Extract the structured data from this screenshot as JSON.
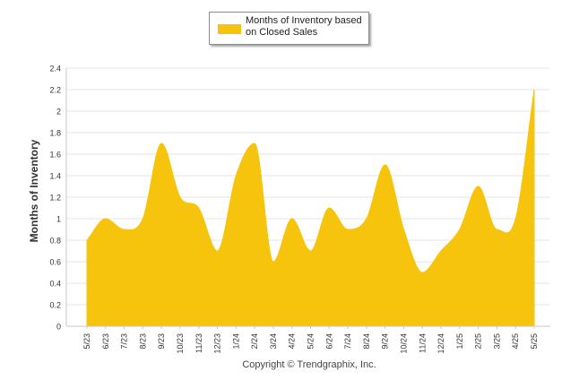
{
  "legend": {
    "label": "Months of Inventory based on Closed Sales"
  },
  "footer": {
    "copyright": "Copyright © Trendgraphix, Inc."
  },
  "colors": {
    "series_fill": "#f6c40c",
    "grid": "#e4e4e4",
    "axis": "#c8c8c8",
    "tick_text": "#333333"
  },
  "chart_data": {
    "type": "area",
    "ylabel": "Months of Inventory",
    "xlabel": "",
    "ylim": [
      0,
      2.4
    ],
    "yticks": [
      "0",
      "0.2",
      "0.4",
      "0.6",
      "0.8",
      "1",
      "1.2",
      "1.4",
      "1.6",
      "1.8",
      "2",
      "2.2",
      "2.4"
    ],
    "grid": true,
    "legend_position": "top-center",
    "categories": [
      "5/23",
      "6/23",
      "7/23",
      "8/23",
      "9/23",
      "10/23",
      "11/23",
      "12/23",
      "1/24",
      "2/24",
      "3/24",
      "4/24",
      "5/24",
      "6/24",
      "7/24",
      "8/24",
      "9/24",
      "10/24",
      "11/24",
      "12/24",
      "1/25",
      "2/25",
      "3/25",
      "4/25",
      "5/25"
    ],
    "series": [
      {
        "name": "Months of Inventory based on Closed Sales",
        "values": [
          0.8,
          1.0,
          0.9,
          1.0,
          1.7,
          1.2,
          1.1,
          0.7,
          1.4,
          1.7,
          0.6,
          1.0,
          0.7,
          1.1,
          0.9,
          1.0,
          1.5,
          0.9,
          0.5,
          0.7,
          0.9,
          1.3,
          0.9,
          1.0,
          2.2
        ]
      }
    ]
  }
}
